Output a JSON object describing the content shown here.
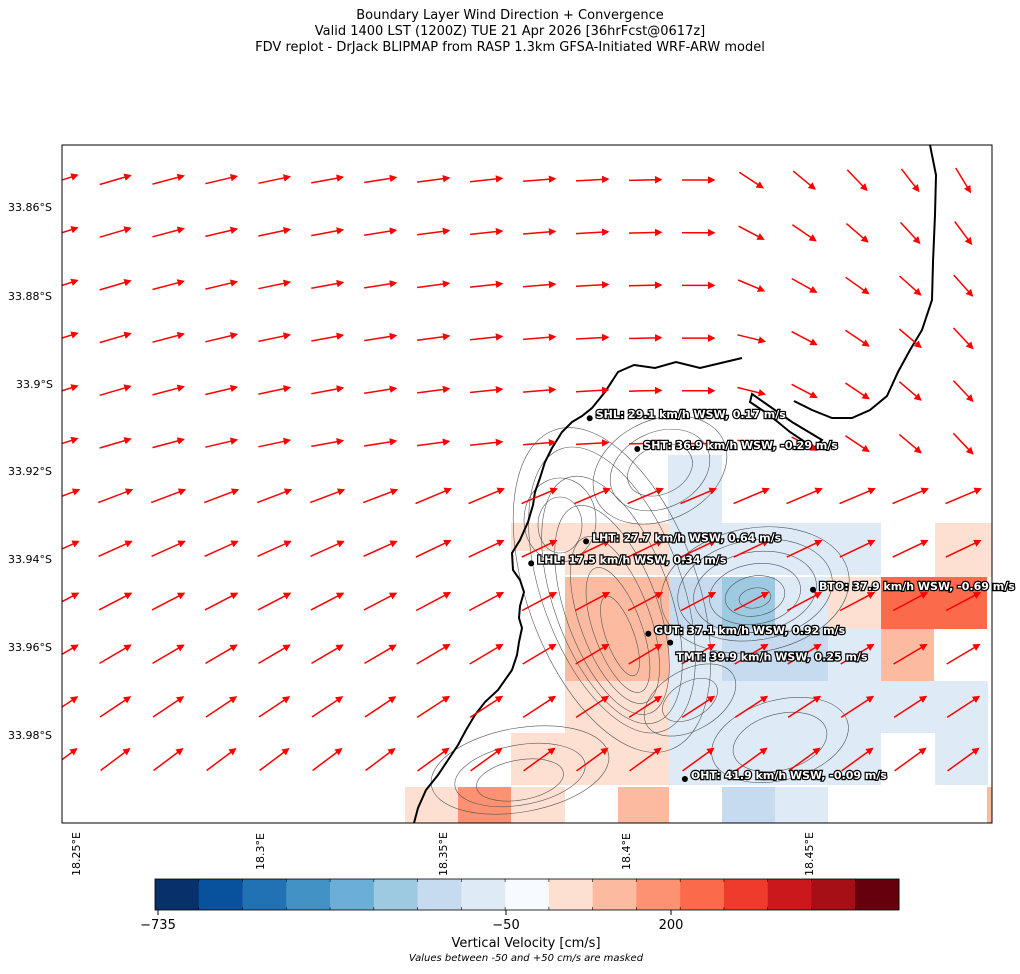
{
  "title": {
    "line1": "Boundary Layer Wind Direction + Convergence",
    "line2": "Valid 1400 LST (1200Z) TUE 21 Apr 2026 [36hrFcst@0617z]",
    "line3": "FDV replot - DrJack BLIPMAP from RASP 1.3km GFSA-Initiated WRF-ARW model"
  },
  "axes": {
    "lat_labels": [
      "33.86°S",
      "33.88°S",
      "33.9°S",
      "33.92°S",
      "33.94°S",
      "33.96°S",
      "33.98°S"
    ],
    "lon_labels": [
      "18.25°E",
      "18.3°E",
      "18.35°E",
      "18.4°E",
      "18.45°E"
    ]
  },
  "stations": [
    {
      "code": "SHL",
      "label": "SHL: 29.1 km/h WSW, 0.17 m/s",
      "lon": 18.392,
      "lat": -33.908
    },
    {
      "code": "SHT",
      "label": "SHT: 36.9 km/h WSW, -0.29 m/s",
      "lon": 18.405,
      "lat": -33.915
    },
    {
      "code": "LHT",
      "label": "LHT: 27.7 km/h WSW, 0.64 m/s",
      "lon": 18.391,
      "lat": -33.936
    },
    {
      "code": "LHL",
      "label": "LHL: 17.5 km/h WSW, 0.34 m/s",
      "lon": 18.376,
      "lat": -33.941
    },
    {
      "code": "BTO",
      "label": "BTO: 37.9 km/h WSW, -0.69 m/s",
      "lon": 18.453,
      "lat": -33.947
    },
    {
      "code": "GUT",
      "label": "GUT: 37.1 km/h WSW, 0.92 m/s",
      "lon": 18.408,
      "lat": -33.957
    },
    {
      "code": "TMT",
      "label": "TMT: 39.9 km/h WSW, 0.25 m/s",
      "lon": 18.414,
      "lat": -33.959
    },
    {
      "code": "OHT",
      "label": "OHT: 41.9 km/h WSW, -0.09 m/s",
      "lon": 18.418,
      "lat": -33.99
    }
  ],
  "colorbar": {
    "ticks": [
      {
        "value": -735,
        "label": "−735"
      },
      {
        "value": -50,
        "label": "−50"
      },
      {
        "value": 200,
        "label": "200"
      }
    ],
    "label": "Vertical Velocity [cm/s]",
    "note": "Values between -50 and +50 cm/s are masked",
    "colors": [
      "#08306b",
      "#08519c",
      "#2171b5",
      "#4292c6",
      "#6baed6",
      "#9ecae1",
      "#c6dbef",
      "#deebf7",
      "#f7fbff",
      "#fee0d2",
      "#fcbba1",
      "#fc9272",
      "#fb6a4a",
      "#ef3b2c",
      "#cb181d",
      "#a50f15",
      "#67000d"
    ]
  },
  "colors": {
    "wind_arrow": "#ff0000",
    "coastline": "#000000",
    "terrain_contour": "#555555"
  }
}
